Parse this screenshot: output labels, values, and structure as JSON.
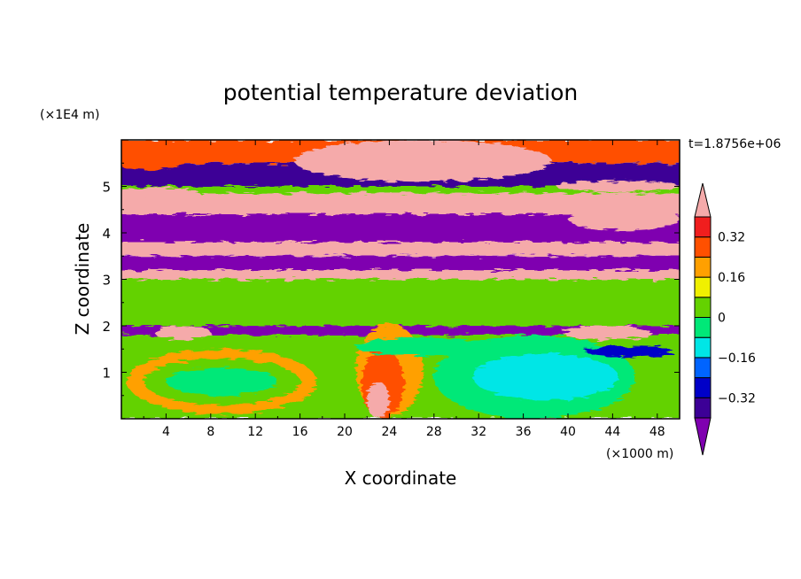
{
  "chart_data": {
    "type": "heatmap",
    "title": "potential temperature deviation",
    "xlabel": "X coordinate",
    "ylabel": "Z coordinate",
    "x_unit": "(×1000 m)",
    "y_unit": "(×1E4 m)",
    "time_label": "t=1.8756e+06",
    "xlim": [
      0,
      50
    ],
    "ylim": [
      0,
      6
    ],
    "x_ticks": [
      "4",
      "8",
      "12",
      "16",
      "20",
      "24",
      "28",
      "32",
      "36",
      "40",
      "44",
      "48"
    ],
    "y_ticks": [
      "1",
      "2",
      "3",
      "4",
      "5"
    ],
    "colorbar": {
      "levels": [
        -0.4,
        -0.32,
        -0.24,
        -0.16,
        -0.08,
        0,
        0.08,
        0.16,
        0.24,
        0.32,
        0.4
      ],
      "tick_labels": [
        "0.32",
        "0.16",
        "0",
        "−0.16",
        "−0.32"
      ],
      "tick_values": [
        0.32,
        0.16,
        0,
        -0.16,
        -0.32
      ],
      "colors": [
        "#7f00b0",
        "#3c0096",
        "#0000c8",
        "#0064ff",
        "#00e6e6",
        "#00e878",
        "#64d200",
        "#f0f000",
        "#ffa000",
        "#ff5000",
        "#f01e1e",
        "#f5aaaa"
      ]
    },
    "layers": [
      {
        "y": [
          5.5,
          6.0
        ],
        "v": 0.25
      },
      {
        "y": [
          5.0,
          5.5
        ],
        "v": -0.38
      },
      {
        "y": [
          4.85,
          5.0
        ],
        "v": 0.0
      },
      {
        "y": [
          4.4,
          4.85
        ],
        "v": 0.45
      },
      {
        "y": [
          3.8,
          4.4
        ],
        "v": -0.45
      },
      {
        "y": [
          3.5,
          3.8
        ],
        "v": 0.45
      },
      {
        "y": [
          3.2,
          3.5
        ],
        "v": -0.45
      },
      {
        "y": [
          3.0,
          3.2
        ],
        "v": 0.45
      },
      {
        "y": [
          2.6,
          3.0
        ],
        "v": 0.02
      },
      {
        "y": [
          2.0,
          2.6
        ],
        "v": 0.05
      },
      {
        "y": [
          1.8,
          2.0
        ],
        "v": -0.42
      },
      {
        "y": [
          0.0,
          1.8
        ],
        "v": 0.03
      }
    ],
    "features": [
      {
        "x": 27.0,
        "y": 5.55,
        "rx": 9.5,
        "ry": 0.3,
        "v": -0.45
      },
      {
        "x": 27.0,
        "y": 5.55,
        "rx": 11.5,
        "ry": 0.45,
        "v": 0.45
      },
      {
        "x": 2.5,
        "y": 5.6,
        "rx": 3.5,
        "ry": 0.25,
        "v": 0.3
      },
      {
        "x": 3.0,
        "y": 4.85,
        "rx": 4.0,
        "ry": 0.12,
        "v": 0.45
      },
      {
        "x": 45.0,
        "y": 4.3,
        "rx": 5.0,
        "ry": 0.25,
        "v": 0.45
      },
      {
        "x": 44.5,
        "y": 5.0,
        "rx": 5.5,
        "ry": 0.12,
        "v": 0.45
      },
      {
        "x": 5.5,
        "y": 1.85,
        "rx": 2.5,
        "ry": 0.15,
        "v": 0.45
      },
      {
        "x": 43.5,
        "y": 1.85,
        "rx": 4.0,
        "ry": 0.15,
        "v": 0.45
      },
      {
        "x": 37.0,
        "y": 0.9,
        "rx": 9.0,
        "ry": 0.9,
        "v": -0.05
      },
      {
        "x": 38.0,
        "y": 0.9,
        "rx": 6.5,
        "ry": 0.5,
        "v": -0.1
      },
      {
        "x": 9.0,
        "y": 0.8,
        "rx": 8.5,
        "ry": 0.7,
        "v": 0.16
      },
      {
        "x": 9.0,
        "y": 0.8,
        "rx": 7.0,
        "ry": 0.5,
        "v": 0.05
      },
      {
        "x": 9.0,
        "y": 0.8,
        "rx": 5.0,
        "ry": 0.3,
        "v": -0.05
      },
      {
        "x": 24.0,
        "y": 1.05,
        "rx": 3.0,
        "ry": 1.0,
        "v": 0.22
      },
      {
        "x": 23.4,
        "y": 0.75,
        "rx": 1.9,
        "ry": 0.75,
        "v": 0.3
      },
      {
        "x": 23.0,
        "y": 0.4,
        "rx": 1.0,
        "ry": 0.4,
        "v": 0.4
      },
      {
        "x": 27.0,
        "y": 1.55,
        "rx": 6.0,
        "ry": 0.2,
        "v": -0.05
      },
      {
        "x": 45.5,
        "y": 1.45,
        "rx": 4.0,
        "ry": 0.12,
        "v": -0.3
      }
    ]
  }
}
